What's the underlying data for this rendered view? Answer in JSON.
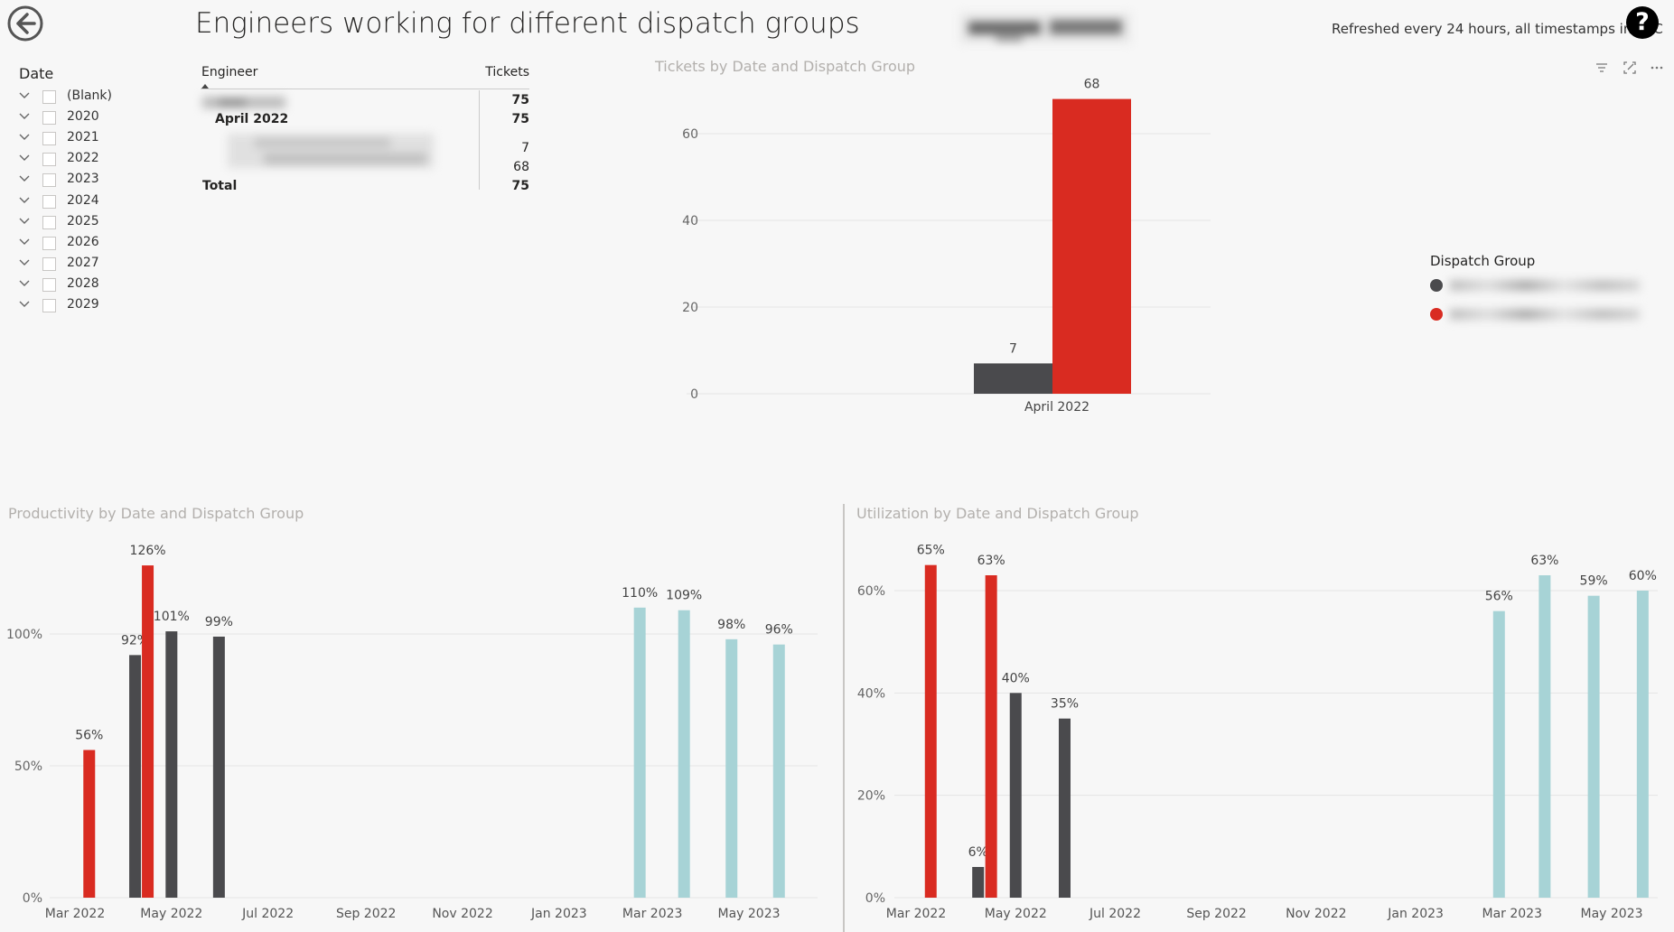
{
  "header": {
    "title": "Engineers working for different dispatch groups",
    "refresh_note": "Refreshed every 24 hours, all timestamps in UTC",
    "help_label": "?"
  },
  "slicer": {
    "title": "Date",
    "items": [
      "(Blank)",
      "2020",
      "2021",
      "2022",
      "2023",
      "2024",
      "2025",
      "2026",
      "2027",
      "2028",
      "2029"
    ]
  },
  "matrix": {
    "col_engineer": "Engineer",
    "col_tickets": "Tickets",
    "rows": [
      {
        "label": "",
        "value": "75",
        "bold": true
      },
      {
        "label": "April 2022",
        "value": "75",
        "bold": true
      },
      {
        "label": "",
        "value": "7",
        "bold": false
      },
      {
        "label": "",
        "value": "68",
        "bold": false
      },
      {
        "label": "Total",
        "value": "75",
        "bold": true
      }
    ]
  },
  "colors": {
    "dark": "#4a4a4d",
    "red": "#d92b21",
    "teal": "#a7d3d6"
  },
  "tickets_chart": {
    "title": "Tickets by Date and Dispatch Group",
    "legend_title": "Dispatch Group",
    "icons": [
      "filter-icon",
      "focus-mode-icon",
      "more-options-icon"
    ]
  },
  "productivity_chart": {
    "title": "Productivity by Date and Dispatch Group"
  },
  "utilization_chart": {
    "title": "Utilization by Date and Dispatch Group"
  },
  "chart_data": [
    {
      "type": "bar",
      "title": "Tickets by Date and Dispatch Group",
      "categories": [
        "April 2022"
      ],
      "series": [
        {
          "color": "#4a4a4d",
          "values": [
            7
          ]
        },
        {
          "color": "#d92b21",
          "values": [
            68
          ]
        }
      ],
      "data_labels": [
        "7",
        "68"
      ],
      "yticks": [
        "0",
        "20",
        "40",
        "60"
      ],
      "ylim": [
        0,
        75
      ],
      "legend": "right"
    },
    {
      "type": "bar",
      "title": "Productivity by Date and Dispatch Group",
      "xticks": [
        "Mar 2022",
        "May 2022",
        "Jul 2022",
        "Sep 2022",
        "Nov 2022",
        "Jan 2023",
        "Mar 2023",
        "May 2023"
      ],
      "yticks": [
        "0%",
        "50%",
        "100%"
      ],
      "ylim": [
        0,
        135
      ],
      "bars": [
        {
          "x": "2022-03-10",
          "value": 56,
          "label": "56%",
          "series": "red"
        },
        {
          "x": "2022-04-08",
          "value": 92,
          "label": "92%",
          "series": "dark"
        },
        {
          "x": "2022-04-16",
          "value": 126,
          "label": "126%",
          "series": "red"
        },
        {
          "x": "2022-05-01",
          "value": 101,
          "label": "101%",
          "series": "dark"
        },
        {
          "x": "2022-05-31",
          "value": 99,
          "label": "99%",
          "series": "dark"
        },
        {
          "x": "2023-02-21",
          "value": 110,
          "label": "110%",
          "series": "teal"
        },
        {
          "x": "2023-03-21",
          "value": 109,
          "label": "109%",
          "series": "teal"
        },
        {
          "x": "2023-04-20",
          "value": 98,
          "label": "98%",
          "series": "teal"
        },
        {
          "x": "2023-05-20",
          "value": 96,
          "label": "96%",
          "series": "teal"
        }
      ]
    },
    {
      "type": "bar",
      "title": "Utilization by Date and Dispatch Group",
      "xticks": [
        "Mar 2022",
        "May 2022",
        "Jul 2022",
        "Sep 2022",
        "Nov 2022",
        "Jan 2023",
        "Mar 2023",
        "May 2023"
      ],
      "yticks": [
        "0%",
        "20%",
        "40%",
        "60%"
      ],
      "ylim": [
        0,
        70
      ],
      "bars": [
        {
          "x": "2022-03-10",
          "value": 65,
          "label": "65%",
          "series": "red"
        },
        {
          "x": "2022-04-08",
          "value": 6,
          "label": "6%",
          "series": "dark"
        },
        {
          "x": "2022-04-16",
          "value": 63,
          "label": "63%",
          "series": "red"
        },
        {
          "x": "2022-05-01",
          "value": 40,
          "label": "40%",
          "series": "dark"
        },
        {
          "x": "2022-05-31",
          "value": 35,
          "label": "35%",
          "series": "dark"
        },
        {
          "x": "2023-02-21",
          "value": 56,
          "label": "56%",
          "series": "teal"
        },
        {
          "x": "2023-03-21",
          "value": 63,
          "label": "63%",
          "series": "teal"
        },
        {
          "x": "2023-04-20",
          "value": 59,
          "label": "59%",
          "series": "teal"
        },
        {
          "x": "2023-05-20",
          "value": 60,
          "label": "60%",
          "series": "teal"
        }
      ]
    }
  ]
}
